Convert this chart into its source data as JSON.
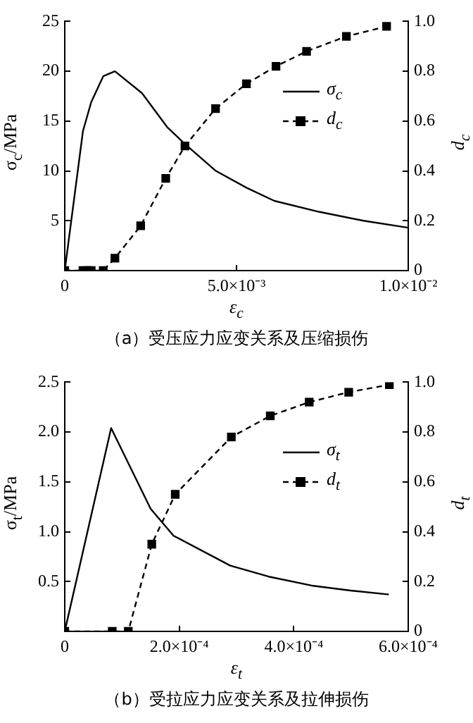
{
  "chart_data": [
    {
      "type": "line",
      "title": "（a）受压应力应变关系及压缩损伤",
      "xlabel": "ε$_{c}$",
      "ylabel": "σ$_{c}$/MPa",
      "y2label": "d$_{c}$",
      "xlim": [
        0,
        0.01
      ],
      "xticks": [
        0,
        {
          "value": 0.005,
          "label": "5.0×10⁻³"
        },
        {
          "value": 0.01,
          "label": "1.0×10⁻²"
        }
      ],
      "ylim": [
        0,
        25
      ],
      "yticks": [
        5,
        10,
        15,
        20,
        25
      ],
      "y2lim": [
        0,
        1
      ],
      "y2ticks": [
        0,
        0.2,
        0.4,
        0.6,
        0.8,
        {
          "value": 1,
          "label": "1.0"
        }
      ],
      "grid": false,
      "legend": "top right",
      "series": [
        {
          "name": "σ$_{c}$",
          "color": "#000000",
          "line_style": "solid",
          "marker": "none",
          "x": [
            0,
            0.00053,
            0.00077,
            0.00112,
            0.00146,
            0.00225,
            0.00298,
            0.0035,
            0.0044,
            0.0053,
            0.0061,
            0.0074,
            0.0087,
            0.01
          ],
          "values": [
            0,
            14.0,
            16.9,
            19.5,
            20.0,
            17.8,
            14.4,
            12.7,
            10.0,
            8.3,
            7.0,
            5.9,
            5.0,
            4.3
          ]
        },
        {
          "name": "d$_{c}$",
          "color": "#000000",
          "axis": "y2",
          "line_style": "dashed",
          "marker": "square",
          "x": [
            0,
            0.00053,
            0.00066,
            0.00077,
            0.00112,
            0.00146,
            0.00221,
            0.00294,
            0.0035,
            0.00439,
            0.00529,
            0.00615,
            0.00704,
            0.0082,
            0.00937
          ],
          "values": [
            0,
            0,
            0,
            0,
            0,
            0.05,
            0.18,
            0.37,
            0.5,
            0.65,
            0.75,
            0.82,
            0.88,
            0.94,
            0.98
          ]
        }
      ]
    },
    {
      "type": "line",
      "title": "（b）受拉应力应变关系及拉伸损伤",
      "xlabel": "ε$_{t}$",
      "ylabel": "σ$_{t}$/MPa",
      "y2label": "d$_{t}$",
      "xlim": [
        0,
        0.0006
      ],
      "xticks": [
        0,
        {
          "value": 0.0002,
          "label": "2.0×10⁻⁴"
        },
        {
          "value": 0.0004,
          "label": "4.0×10⁻⁴"
        },
        {
          "value": 0.0006,
          "label": "6.0×10⁻⁴"
        }
      ],
      "ylim": [
        0,
        2.5
      ],
      "yticks": [
        0.5,
        {
          "value": 1,
          "label": "1.0"
        },
        1.5,
        {
          "value": 2,
          "label": "2.0"
        },
        2.5
      ],
      "y2lim": [
        0,
        1
      ],
      "y2ticks": [
        0,
        0.2,
        0.4,
        0.6,
        0.8,
        {
          "value": 1,
          "label": "1.0"
        }
      ],
      "grid": false,
      "legend": "top right",
      "series": [
        {
          "name": "σ$_{t}$",
          "color": "#000000",
          "line_style": "solid",
          "marker": "none",
          "x": [
            0,
            8.1e-05,
            0.00015,
            0.00019,
            0.000289,
            0.000356,
            0.000431,
            0.000499,
            0.000566
          ],
          "values": [
            0,
            2.04,
            1.23,
            0.96,
            0.66,
            0.55,
            0.46,
            0.41,
            0.37
          ]
        },
        {
          "name": "d$_{t}$",
          "color": "#000000",
          "axis": "y2",
          "line_style": "dashed",
          "marker": "square",
          "x": [
            0,
            8.3e-05,
            0.000111,
            0.000152,
            0.000193,
            0.000291,
            0.000359,
            0.000427,
            0.000496,
            0.000567
          ],
          "values": [
            0,
            0,
            0,
            0.35,
            0.55,
            0.78,
            0.865,
            0.92,
            0.96,
            0.99
          ]
        }
      ]
    }
  ]
}
